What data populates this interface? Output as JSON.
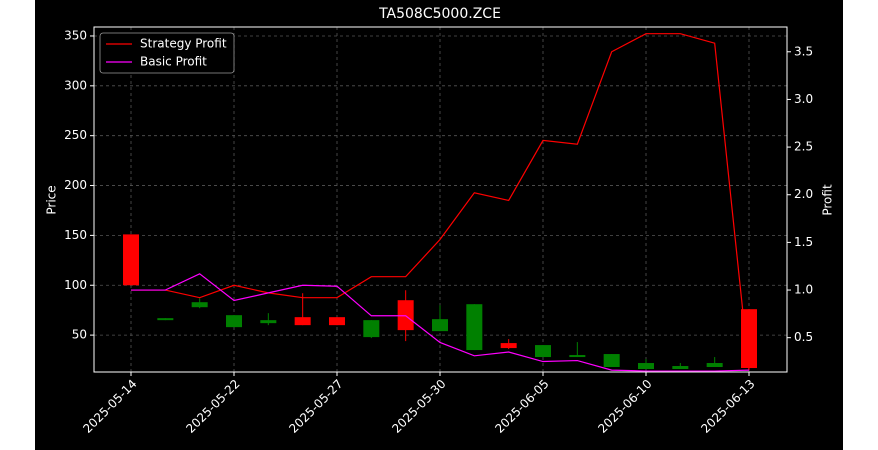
{
  "chart_data": {
    "type": "candlestick",
    "title": "TA508C5000.ZCE",
    "ylabel": "Price",
    "y2label": "Profit",
    "categories": [
      "2025-05-14",
      null,
      null,
      "2025-05-22",
      null,
      null,
      "2025-05-27",
      null,
      null,
      "2025-05-30",
      null,
      null,
      "2025-06-05",
      null,
      null,
      "2025-06-10",
      null,
      null,
      "2025-06-13"
    ],
    "open": [
      100,
      67,
      83,
      70,
      65,
      60,
      60,
      65,
      55,
      66,
      81,
      37,
      40,
      30,
      31,
      22,
      19,
      22,
      17
    ],
    "high": [
      151,
      67,
      87,
      70,
      72,
      92,
      68,
      65,
      95,
      80,
      81,
      46,
      40,
      43,
      31,
      26,
      22,
      28,
      76
    ],
    "low": [
      100,
      65,
      77,
      58,
      60,
      60,
      60,
      47,
      44,
      54,
      35,
      36,
      28,
      28,
      18,
      16,
      16,
      18,
      16
    ],
    "close": [
      151,
      65,
      78,
      58,
      62,
      68,
      68,
      48,
      85,
      54,
      35,
      42,
      28,
      28,
      18,
      16,
      16,
      18,
      76
    ],
    "up_color": "#ff0000",
    "down_color": "#008000",
    "series": [
      {
        "name": "Strategy Profit",
        "color": "#ff0000",
        "axis": "y2",
        "values": [
          1.0,
          1.0,
          0.92,
          1.05,
          0.97,
          0.92,
          0.92,
          1.14,
          1.14,
          1.53,
          2.02,
          1.94,
          2.57,
          2.53,
          3.5,
          3.69,
          3.69,
          3.59,
          0.16
        ]
      },
      {
        "name": "Basic Profit",
        "color": "#ff00ff",
        "axis": "y2",
        "values": [
          1.0,
          1.0,
          1.17,
          0.89,
          0.97,
          1.05,
          1.04,
          0.73,
          0.73,
          0.45,
          0.31,
          0.35,
          0.25,
          0.26,
          0.16,
          0.15,
          0.15,
          0.15,
          0.16
        ]
      }
    ],
    "ylim": [
      13,
      359
    ],
    "yticks": [
      50,
      100,
      150,
      200,
      250,
      300,
      350
    ],
    "y2lim": [
      0.14,
      3.76
    ],
    "y2ticks": [
      0.5,
      {
        "value": 1,
        "label": "1.0"
      },
      1.5,
      {
        "value": 2,
        "label": "2.0"
      },
      2.5,
      {
        "value": 3,
        "label": "3.0"
      },
      3.5
    ],
    "grid": true,
    "legend": "upper left"
  }
}
